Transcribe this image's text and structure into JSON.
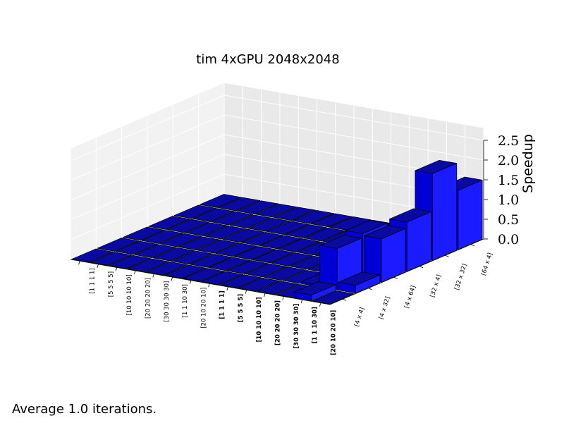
{
  "chart_data": {
    "type": "bar3d",
    "title": "tim 4xGPU 2048x2048",
    "zlabel": "Speedup",
    "zlim": [
      0.0,
      2.5
    ],
    "zticks": [
      "0.0",
      "0.5",
      "1.0",
      "1.5",
      "2.0",
      "2.5"
    ],
    "x_categories": [
      "[1 1 1 1]",
      "[5 5 5 5]",
      "[10 10 10 10]",
      "[20 20 20 20]",
      "[30 30 30 30]",
      "[1 1 10 30]",
      "[20 10 20 10]",
      "[1 1 1 1]",
      "[5 5 5 5]",
      "[10 10 10 10]",
      "[20 20 20 20]",
      "[30 30 30 30]",
      "[1 1 10 30]",
      "[20 10 20 10]"
    ],
    "x_bold": [
      false,
      false,
      false,
      false,
      false,
      false,
      false,
      true,
      true,
      true,
      true,
      true,
      true,
      true
    ],
    "y_categories": [
      "[4 x 4]",
      "[4 x 32]",
      "[4 x 64]",
      "[32 x 4]",
      "[32 x 32]",
      "[64 x 4]"
    ],
    "values": [
      [
        0,
        0,
        0,
        0,
        0,
        0,
        0,
        0,
        0,
        0,
        0,
        0,
        0.15,
        0
      ],
      [
        0,
        0,
        0,
        0,
        0,
        0,
        0,
        0,
        0,
        0,
        0,
        0.05,
        1.05,
        0.2
      ],
      [
        0,
        0,
        0,
        0,
        0,
        0,
        0,
        0,
        0,
        0,
        0,
        0.02,
        1.15,
        1.1
      ],
      [
        0,
        0,
        0,
        0,
        0,
        0,
        0,
        0,
        0,
        0,
        0,
        0,
        0.5,
        1.25
      ],
      [
        0,
        0,
        0,
        0,
        0,
        0,
        0,
        0,
        0,
        0,
        0,
        0,
        0.05,
        2.2
      ],
      [
        0,
        0,
        0,
        0,
        0,
        0,
        0,
        0,
        0,
        0,
        0,
        0,
        0.03,
        1.5
      ]
    ],
    "bar_colors": {
      "top": "#0a0aa0",
      "side": "#1b1bff",
      "front": "#0000d6",
      "edge": "#000000"
    },
    "grid": true
  },
  "footer": "Average 1.0 iterations."
}
